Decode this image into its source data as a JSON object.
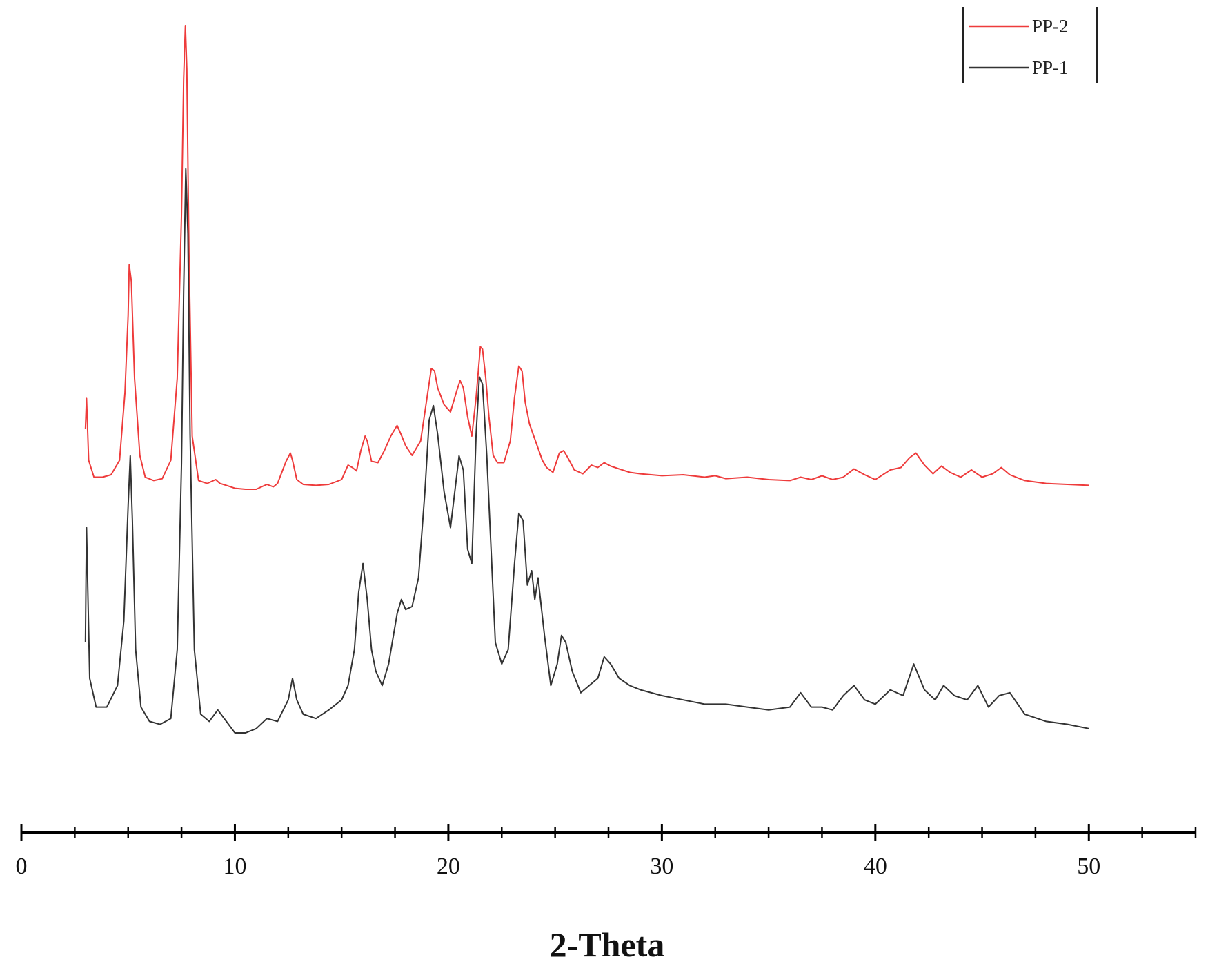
{
  "chart_data": {
    "type": "line",
    "xlabel": "2-Theta",
    "ylabel": "",
    "xlim": [
      0,
      55
    ],
    "x_major_ticks": [
      0,
      10,
      20,
      30,
      40,
      50
    ],
    "x_tick_labels": [
      "0",
      "10",
      "20",
      "30",
      "40",
      "50"
    ],
    "x_minor_step": 2.5,
    "grid": false,
    "legend_placement": "top-right",
    "series": [
      {
        "name": "PP-2",
        "color": "#ee3b3b",
        "x": [
          3.0,
          3.05,
          3.15,
          3.4,
          3.8,
          4.2,
          4.6,
          4.85,
          5.0,
          5.05,
          5.15,
          5.3,
          5.55,
          5.8,
          6.2,
          6.6,
          7.0,
          7.3,
          7.5,
          7.6,
          7.68,
          7.75,
          7.85,
          8.0,
          8.3,
          8.7,
          9.1,
          9.3,
          9.6,
          10.0,
          10.5,
          11.0,
          11.5,
          11.8,
          12.0,
          12.4,
          12.6,
          12.7,
          12.9,
          13.2,
          13.8,
          14.4,
          15.0,
          15.3,
          15.5,
          15.7,
          15.9,
          16.1,
          16.2,
          16.4,
          16.7,
          17.0,
          17.3,
          17.6,
          17.8,
          18.0,
          18.3,
          18.7,
          19.0,
          19.2,
          19.35,
          19.5,
          19.8,
          20.1,
          20.4,
          20.55,
          20.7,
          20.9,
          21.1,
          21.3,
          21.5,
          21.6,
          21.75,
          21.9,
          22.1,
          22.3,
          22.6,
          22.9,
          23.1,
          23.3,
          23.45,
          23.6,
          23.8,
          24.0,
          24.2,
          24.4,
          24.6,
          24.9,
          25.2,
          25.4,
          25.6,
          25.9,
          26.3,
          26.7,
          27.0,
          27.3,
          27.6,
          28.0,
          28.5,
          29.0,
          30.0,
          31.0,
          32.0,
          32.5,
          33.0,
          34.0,
          35.0,
          36.0,
          36.5,
          37.0,
          37.5,
          38.0,
          38.5,
          39.0,
          39.5,
          40.0,
          40.7,
          41.2,
          41.6,
          41.9,
          42.3,
          42.7,
          43.1,
          43.5,
          44.0,
          44.5,
          45.0,
          45.5,
          45.9,
          46.3,
          47.0,
          48.0,
          49.0,
          50.0
        ],
        "values": [
          1.55,
          2.18,
          0.9,
          0.55,
          0.55,
          0.6,
          0.9,
          2.3,
          3.9,
          4.95,
          4.6,
          2.6,
          1.0,
          0.55,
          0.48,
          0.52,
          0.9,
          2.6,
          6.0,
          8.8,
          9.9,
          9.0,
          5.2,
          1.4,
          0.48,
          0.42,
          0.5,
          0.42,
          0.38,
          0.32,
          0.3,
          0.3,
          0.4,
          0.35,
          0.42,
          0.88,
          1.05,
          0.9,
          0.5,
          0.4,
          0.38,
          0.4,
          0.5,
          0.8,
          0.75,
          0.68,
          1.1,
          1.4,
          1.3,
          0.88,
          0.85,
          1.1,
          1.4,
          1.62,
          1.42,
          1.2,
          1.0,
          1.3,
          2.2,
          2.8,
          2.75,
          2.4,
          2.05,
          1.9,
          2.35,
          2.55,
          2.4,
          1.8,
          1.4,
          2.2,
          3.25,
          3.2,
          2.6,
          1.8,
          1.0,
          0.85,
          0.85,
          1.3,
          2.2,
          2.85,
          2.75,
          2.1,
          1.65,
          1.4,
          1.15,
          0.9,
          0.75,
          0.65,
          1.05,
          1.1,
          0.95,
          0.7,
          0.62,
          0.8,
          0.75,
          0.85,
          0.78,
          0.72,
          0.65,
          0.62,
          0.58,
          0.6,
          0.55,
          0.58,
          0.52,
          0.55,
          0.5,
          0.48,
          0.55,
          0.5,
          0.58,
          0.5,
          0.55,
          0.72,
          0.6,
          0.5,
          0.7,
          0.75,
          0.95,
          1.05,
          0.8,
          0.62,
          0.78,
          0.65,
          0.55,
          0.7,
          0.55,
          0.62,
          0.75,
          0.6,
          0.48,
          0.42,
          0.4,
          0.38
        ]
      },
      {
        "name": "PP-1",
        "color": "#333333",
        "x": [
          3.0,
          3.05,
          3.1,
          3.2,
          3.5,
          4.0,
          4.5,
          4.8,
          5.0,
          5.1,
          5.2,
          5.35,
          5.6,
          6.0,
          6.5,
          7.0,
          7.3,
          7.5,
          7.6,
          7.7,
          7.8,
          7.9,
          8.1,
          8.4,
          8.8,
          9.2,
          9.6,
          10.0,
          10.5,
          11.0,
          11.5,
          12.0,
          12.5,
          12.7,
          12.9,
          13.2,
          13.8,
          14.4,
          15.0,
          15.3,
          15.6,
          15.8,
          16.0,
          16.2,
          16.4,
          16.6,
          16.9,
          17.2,
          17.6,
          17.8,
          18.0,
          18.3,
          18.6,
          18.9,
          19.1,
          19.3,
          19.5,
          19.8,
          20.1,
          20.3,
          20.5,
          20.7,
          20.9,
          21.1,
          21.3,
          21.45,
          21.6,
          21.8,
          22.0,
          22.2,
          22.5,
          22.8,
          23.1,
          23.3,
          23.5,
          23.7,
          23.9,
          24.05,
          24.2,
          24.5,
          24.8,
          25.1,
          25.3,
          25.5,
          25.8,
          26.2,
          26.6,
          27.0,
          27.3,
          27.6,
          28.0,
          28.5,
          29.0,
          30.0,
          31.0,
          32.0,
          33.0,
          34.0,
          35.0,
          36.0,
          36.5,
          37.0,
          37.5,
          38.0,
          38.5,
          39.0,
          39.5,
          40.0,
          40.7,
          41.3,
          41.8,
          42.3,
          42.8,
          43.2,
          43.7,
          44.3,
          44.8,
          45.3,
          45.8,
          46.3,
          47.0,
          48.0,
          49.0,
          50.0
        ],
        "values": [
          0.75,
          1.55,
          1.2,
          0.5,
          0.3,
          0.3,
          0.45,
          0.9,
          1.7,
          2.05,
          1.6,
          0.7,
          0.3,
          0.2,
          0.18,
          0.22,
          0.7,
          2.0,
          3.2,
          4.05,
          3.6,
          2.2,
          0.7,
          0.25,
          0.2,
          0.28,
          0.2,
          0.12,
          0.12,
          0.15,
          0.22,
          0.2,
          0.35,
          0.5,
          0.35,
          0.25,
          0.22,
          0.28,
          0.35,
          0.45,
          0.7,
          1.1,
          1.3,
          1.05,
          0.7,
          0.55,
          0.45,
          0.6,
          0.95,
          1.05,
          0.98,
          1.0,
          1.2,
          1.8,
          2.3,
          2.4,
          2.2,
          1.8,
          1.55,
          1.8,
          2.05,
          1.95,
          1.4,
          1.3,
          2.2,
          2.6,
          2.55,
          2.05,
          1.4,
          0.75,
          0.6,
          0.7,
          1.3,
          1.65,
          1.6,
          1.15,
          1.25,
          1.05,
          1.2,
          0.8,
          0.45,
          0.6,
          0.8,
          0.75,
          0.55,
          0.4,
          0.45,
          0.5,
          0.65,
          0.6,
          0.5,
          0.45,
          0.42,
          0.38,
          0.35,
          0.32,
          0.32,
          0.3,
          0.28,
          0.3,
          0.4,
          0.3,
          0.3,
          0.28,
          0.38,
          0.45,
          0.35,
          0.32,
          0.42,
          0.38,
          0.6,
          0.42,
          0.35,
          0.45,
          0.38,
          0.35,
          0.45,
          0.3,
          0.38,
          0.4,
          0.25,
          0.2,
          0.18,
          0.15
        ]
      }
    ]
  }
}
